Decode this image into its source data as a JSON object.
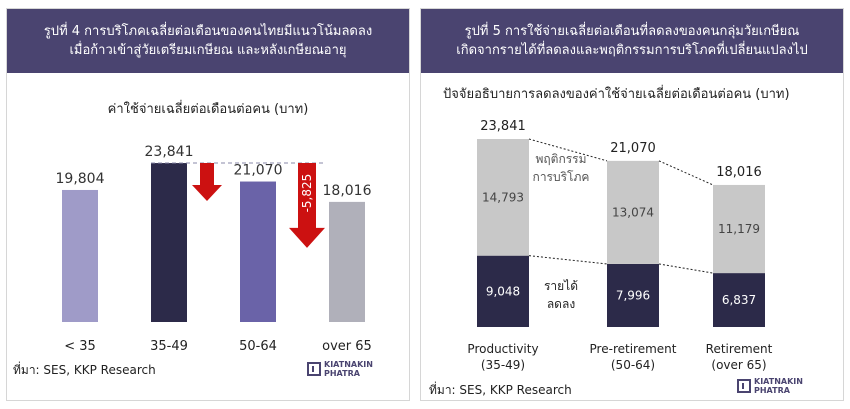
{
  "left": {
    "title_line1": "รูปที่ 4 การบริโภคเฉลี่ยต่อเดือนของคนไทยมีแนวโน้มลดลง",
    "title_line2": "เมื่อก้าวเข้าสู่วัยเตรียมเกษียณ และหลังเกษียณอายุ",
    "source": "ที่มา: SES, KKP Research",
    "logo_line1": "KIATNAKIN",
    "logo_line2": "PHATRA"
  },
  "right": {
    "title_line1": "รูปที่ 5  การใช้จ่ายเฉลี่ยต่อเดือนที่ลดลงของคนกลุ่มวัยเกษียณ",
    "title_line2": "เกิดจากรายได้ที่ลดลงและพฤติกรรมการบริโภคที่เปลี่ยนแปลงไป",
    "source": "ที่มา: SES, KKP Research",
    "logo_line1": "KIATNAKIN",
    "logo_line2": "PHATRA"
  },
  "chart_data": [
    {
      "type": "bar",
      "title": "ค่าใช้จ่ายเฉลี่ยต่อเดือนต่อคน (บาท)",
      "categories": [
        "< 35",
        "35-49",
        "50-64",
        "over 65"
      ],
      "values": [
        19804,
        23841,
        21070,
        18016
      ],
      "value_labels": [
        "19,804",
        "23,841",
        "21,070",
        "18,016"
      ],
      "bar_colors": [
        "#9f9bc8",
        "#2c2a49",
        "#6a63a8",
        "#b0b0ba"
      ],
      "annotations": [
        {
          "text": "-5,825",
          "color": "#cc1111",
          "type": "drop"
        }
      ],
      "ylim": [
        0,
        30000
      ],
      "grid": false
    },
    {
      "type": "bar",
      "stacked": true,
      "title": "ปัจจัยอธิบายการลดลงของค่าใช้จ่ายเฉลี่ยต่อเดือนต่อคน (บาท)",
      "categories": [
        [
          "Productivity",
          "(35-49)"
        ],
        [
          "Pre-retirement",
          "(50-64)"
        ],
        [
          "Retirement",
          "(over 65)"
        ]
      ],
      "series": [
        {
          "name": "รายได้ลดลง",
          "name_lines": [
            "รายได้",
            "ลดลง"
          ],
          "color": "#2c2a49",
          "values": [
            9048,
            7996,
            6837
          ],
          "labels": [
            "9,048",
            "7,996",
            "6,837"
          ]
        },
        {
          "name": "พฤติกรรมการบริโภค",
          "name_lines": [
            "พฤติกรรม",
            "การบริโภค"
          ],
          "color": "#c8c8c8",
          "values": [
            14793,
            13074,
            11179
          ],
          "labels": [
            "14,793",
            "13,074",
            "11,179"
          ]
        }
      ],
      "totals": [
        23841,
        21070,
        18016
      ],
      "total_labels": [
        "23,841",
        "21,070",
        "18,016"
      ],
      "ylim": [
        0,
        26000
      ],
      "grid": false
    }
  ]
}
